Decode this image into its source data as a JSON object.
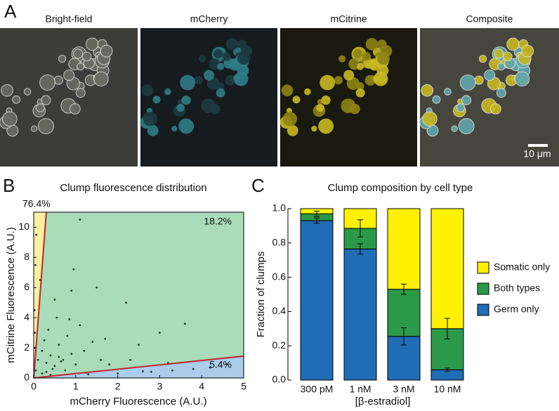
{
  "panel_labels": [
    "A",
    "B",
    "C"
  ],
  "microscopy": {
    "titles": [
      "Bright-field",
      "mCherry",
      "mCitrine",
      "Composite"
    ],
    "scale_bar": "10 μm"
  },
  "chart_data": [
    {
      "type": "scatter",
      "title": "Clump fluorescence distribution",
      "x_label": "mCherry Fluorescence (A.U.)",
      "y_label": "mCitrine Fluorescence (A.U.)",
      "xlim": [
        0,
        5
      ],
      "ylim": [
        0,
        11
      ],
      "xticks": [
        0,
        1,
        2,
        3,
        4,
        5
      ],
      "yticks": [
        0,
        2,
        4,
        6,
        8,
        10
      ],
      "color": "#1c3526",
      "x": [
        0.05,
        0.03,
        0.02,
        0.04,
        0.06,
        0.03,
        0.1,
        0.2,
        0.3,
        0.25,
        0.4,
        0.5,
        0.35,
        0.6,
        0.7,
        0.45,
        0.8,
        0.9,
        1.0,
        0.55,
        1.2,
        1.4,
        0.65,
        0.3,
        0.2,
        1.1,
        1.6,
        1.8,
        2.2,
        2.5,
        3.0,
        1.5,
        0.75,
        0.95,
        2.0,
        2.8,
        3.3,
        3.8,
        4.2,
        4.6,
        1.3,
        2.3,
        1.7,
        0.5,
        0.15,
        0.4,
        0.85,
        1.25,
        2.6,
        3.6,
        0.6,
        1.1,
        3.2,
        0.9
      ],
      "y": [
        0.5,
        2.0,
        4.5,
        7.5,
        9.5,
        3.0,
        1.2,
        1.8,
        1.0,
        2.5,
        1.5,
        0.8,
        3.2,
        2.2,
        1.2,
        0.6,
        2.8,
        1.6,
        0.9,
        4.0,
        1.8,
        2.4,
        1.1,
        0.4,
        0.3,
        3.5,
        1.2,
        0.9,
        5.0,
        2.2,
        3.0,
        6.0,
        0.5,
        7.2,
        0.3,
        0.4,
        0.5,
        0.6,
        0.7,
        0.9,
        0.25,
        1.2,
        2.6,
        5.2,
        6.5,
        0.2,
        3.9,
        0.35,
        0.45,
        3.6,
        1.4,
        10.5,
        1.0,
        5.8
      ],
      "boundaries": [
        {
          "x": [
            0,
            0.3
          ],
          "y": [
            0,
            11
          ]
        },
        {
          "x": [
            0,
            5
          ],
          "y": [
            0,
            1.45
          ]
        }
      ],
      "boundary_color": "#c0262f",
      "regions": [
        {
          "label": "76.4%",
          "color": "#fbf0a0"
        },
        {
          "label": "18.2%",
          "color": "#a9dcb9"
        },
        {
          "label": "5.4%",
          "color": "#a9cdea"
        }
      ]
    },
    {
      "type": "stacked_bar",
      "title": "Clump composition by cell type",
      "x_label": "[β-estradiol]",
      "y_label": "Fraction of clumps",
      "categories": [
        "300 pM",
        "1 nM",
        "3 nM",
        "10 nM"
      ],
      "ylim": [
        0,
        1
      ],
      "yticks": [
        {
          "value": 0,
          "label": "0.0"
        },
        0.2,
        0.4,
        0.6,
        0.8,
        {
          "value": 1,
          "label": "1.0"
        }
      ],
      "series": [
        {
          "name": "Germ only",
          "color": "#1f6db5",
          "values": [
            0.93,
            0.765,
            0.255,
            0.06
          ],
          "errors": [
            0.015,
            0.03,
            0.05,
            0.01
          ]
        },
        {
          "name": "Both types",
          "color": "#2b9a48",
          "values": [
            0.04,
            0.12,
            0.275,
            0.24
          ],
          "errors": [
            0.015,
            0.05,
            0.03,
            0.06
          ]
        },
        {
          "name": "Somatic only",
          "color": "#fff200",
          "values": [
            0.03,
            0.115,
            0.47,
            0.7
          ]
        }
      ]
    }
  ]
}
